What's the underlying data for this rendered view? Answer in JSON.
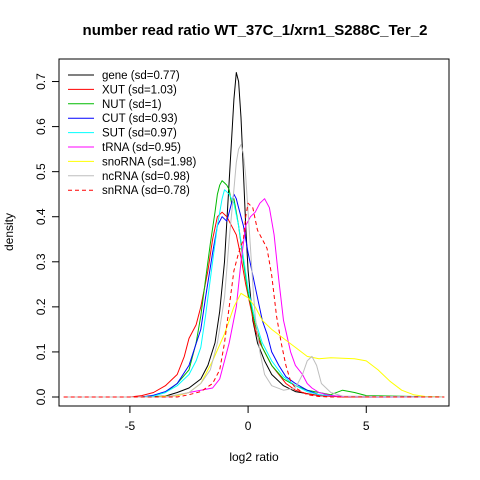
{
  "chart_data": {
    "type": "line",
    "title": "number read ratio WT_37C_1/xrn1_S288C_Ter_2",
    "xlabel": "log2 ratio",
    "ylabel": "density",
    "xlim": [
      -8.0,
      8.5
    ],
    "ylim": [
      -0.02,
      0.75
    ],
    "x_ticks": [
      -5,
      0,
      5
    ],
    "x_tick_labels": [
      "-5",
      "0",
      "5"
    ],
    "y_ticks": [
      0.0,
      0.1,
      0.2,
      0.3,
      0.4,
      0.5,
      0.6,
      0.7
    ],
    "y_tick_labels": [
      "0.0",
      "0.1",
      "0.2",
      "0.3",
      "0.4",
      "0.5",
      "0.6",
      "0.7"
    ],
    "grid": false,
    "legend_position": "top-left",
    "series": [
      {
        "name": "gene (sd=0.77)",
        "color": "#000000",
        "dash": false,
        "x": [
          -7.8,
          -4.5,
          -3.5,
          -3.0,
          -2.5,
          -2.0,
          -1.7,
          -1.4,
          -1.2,
          -1.0,
          -0.8,
          -0.6,
          -0.5,
          -0.4,
          -0.3,
          -0.2,
          -0.1,
          0.0,
          0.2,
          0.4,
          0.7,
          1.0,
          1.5,
          2.0,
          3.0,
          4.0,
          5.0,
          8.3
        ],
        "y": [
          0,
          0,
          0.002,
          0.01,
          0.02,
          0.04,
          0.07,
          0.12,
          0.19,
          0.3,
          0.48,
          0.66,
          0.72,
          0.7,
          0.62,
          0.5,
          0.38,
          0.28,
          0.17,
          0.12,
          0.08,
          0.05,
          0.025,
          0.012,
          0.003,
          0.001,
          0,
          0
        ]
      },
      {
        "name": "XUT (sd=1.03)",
        "color": "#ff0000",
        "dash": false,
        "x": [
          -7.8,
          -5.0,
          -4.5,
          -4.0,
          -3.5,
          -3.0,
          -2.7,
          -2.5,
          -2.2,
          -2.0,
          -1.7,
          -1.5,
          -1.3,
          -1.1,
          -0.9,
          -0.7,
          -0.5,
          -0.3,
          -0.1,
          0.1,
          0.3,
          0.5,
          0.8,
          1.0,
          1.3,
          1.6,
          2.0,
          2.5,
          3.0,
          4.0,
          8.3
        ],
        "y": [
          0,
          0,
          0.003,
          0.01,
          0.025,
          0.05,
          0.09,
          0.13,
          0.16,
          0.2,
          0.28,
          0.35,
          0.4,
          0.41,
          0.4,
          0.38,
          0.36,
          0.31,
          0.25,
          0.2,
          0.15,
          0.12,
          0.09,
          0.07,
          0.05,
          0.03,
          0.015,
          0.007,
          0.003,
          0,
          0
        ]
      },
      {
        "name": "NUT (sd=1)",
        "color": "#00bb00",
        "dash": false,
        "x": [
          -7.8,
          -4.5,
          -4.0,
          -3.5,
          -3.0,
          -2.5,
          -2.2,
          -2.0,
          -1.8,
          -1.6,
          -1.4,
          -1.3,
          -1.2,
          -1.1,
          -1.0,
          -0.9,
          -0.8,
          -0.7,
          -0.6,
          -0.5,
          -0.4,
          -0.2,
          0.0,
          0.3,
          0.6,
          1.0,
          1.5,
          2.0,
          2.5,
          3.0,
          3.5,
          4.0,
          4.5,
          5.0,
          8.3
        ],
        "y": [
          0,
          0,
          0.003,
          0.01,
          0.03,
          0.06,
          0.12,
          0.18,
          0.26,
          0.34,
          0.41,
          0.45,
          0.47,
          0.48,
          0.475,
          0.47,
          0.46,
          0.43,
          0.44,
          0.41,
          0.38,
          0.3,
          0.23,
          0.16,
          0.11,
          0.07,
          0.04,
          0.025,
          0.015,
          0.01,
          0.005,
          0.015,
          0.01,
          0.003,
          0
        ]
      },
      {
        "name": "CUT (sd=0.93)",
        "color": "#0000ff",
        "dash": false,
        "x": [
          -7.8,
          -4.5,
          -4.0,
          -3.5,
          -3.0,
          -2.5,
          -2.0,
          -1.8,
          -1.5,
          -1.3,
          -1.1,
          -0.9,
          -0.8,
          -0.7,
          -0.6,
          -0.5,
          -0.4,
          -0.2,
          0.0,
          0.2,
          0.4,
          0.6,
          0.8,
          1.0,
          1.3,
          1.6,
          2.0,
          2.5,
          3.0,
          4.0,
          8.3
        ],
        "y": [
          0,
          0,
          0.004,
          0.012,
          0.03,
          0.07,
          0.15,
          0.22,
          0.32,
          0.38,
          0.4,
          0.39,
          0.41,
          0.43,
          0.45,
          0.44,
          0.42,
          0.38,
          0.32,
          0.27,
          0.22,
          0.17,
          0.14,
          0.1,
          0.07,
          0.045,
          0.03,
          0.015,
          0.005,
          0.001,
          0
        ]
      },
      {
        "name": "SUT (sd=0.97)",
        "color": "#00ffff",
        "dash": false,
        "x": [
          -7.8,
          -4.5,
          -4.0,
          -3.5,
          -3.0,
          -2.5,
          -2.2,
          -2.0,
          -1.8,
          -1.5,
          -1.3,
          -1.1,
          -1.0,
          -0.8,
          -0.6,
          -0.4,
          -0.2,
          0.0,
          0.3,
          0.6,
          1.0,
          1.5,
          2.0,
          2.5,
          3.0,
          4.0,
          8.3
        ],
        "y": [
          0,
          0,
          0.002,
          0.01,
          0.025,
          0.05,
          0.08,
          0.11,
          0.18,
          0.3,
          0.38,
          0.44,
          0.46,
          0.45,
          0.43,
          0.38,
          0.31,
          0.24,
          0.17,
          0.12,
          0.08,
          0.045,
          0.025,
          0.012,
          0.005,
          0.001,
          0
        ]
      },
      {
        "name": "tRNA (sd=0.95)",
        "color": "#ff00ff",
        "dash": false,
        "x": [
          -7.8,
          -3.5,
          -3.0,
          -2.5,
          -2.0,
          -1.5,
          -1.2,
          -1.0,
          -0.8,
          -0.5,
          -0.3,
          -0.1,
          0.1,
          0.3,
          0.5,
          0.7,
          0.9,
          1.1,
          1.3,
          1.5,
          1.8,
          2.0,
          2.3,
          2.5,
          2.7,
          3.0,
          3.5,
          4.0,
          8.3
        ],
        "y": [
          0,
          0,
          0.003,
          0.01,
          0.015,
          0.02,
          0.04,
          0.08,
          0.12,
          0.2,
          0.3,
          0.38,
          0.4,
          0.41,
          0.43,
          0.44,
          0.42,
          0.36,
          0.26,
          0.17,
          0.1,
          0.07,
          0.05,
          0.03,
          0.02,
          0.01,
          0.003,
          0.001,
          0
        ]
      },
      {
        "name": "snoRNA (sd=1.98)",
        "color": "#ffff00",
        "dash": false,
        "x": [
          -7.8,
          -4.0,
          -3.0,
          -2.5,
          -2.0,
          -1.5,
          -1.0,
          -0.6,
          -0.3,
          0.0,
          0.3,
          0.6,
          1.0,
          1.5,
          2.0,
          2.5,
          3.0,
          3.5,
          4.0,
          4.5,
          5.0,
          5.5,
          6.0,
          6.5,
          7.0,
          7.5,
          8.3
        ],
        "y": [
          0,
          0,
          0.003,
          0.01,
          0.03,
          0.08,
          0.14,
          0.2,
          0.23,
          0.22,
          0.2,
          0.17,
          0.15,
          0.13,
          0.11,
          0.09,
          0.085,
          0.087,
          0.086,
          0.085,
          0.08,
          0.06,
          0.035,
          0.015,
          0.005,
          0.001,
          0
        ]
      },
      {
        "name": "ncRNA (sd=0.98)",
        "color": "#bebebe",
        "dash": false,
        "x": [
          -7.8,
          -3.5,
          -3.0,
          -2.5,
          -2.0,
          -1.6,
          -1.3,
          -1.0,
          -0.8,
          -0.6,
          -0.5,
          -0.4,
          -0.3,
          -0.2,
          -0.1,
          0.0,
          0.1,
          0.2,
          0.3,
          0.5,
          0.7,
          1.0,
          1.5,
          2.0,
          2.3,
          2.5,
          2.7,
          2.9,
          3.1,
          3.5,
          4.0,
          8.3
        ],
        "y": [
          0,
          0,
          0.005,
          0.01,
          0.03,
          0.06,
          0.12,
          0.22,
          0.35,
          0.46,
          0.52,
          0.55,
          0.56,
          0.54,
          0.49,
          0.41,
          0.33,
          0.25,
          0.18,
          0.1,
          0.05,
          0.025,
          0.015,
          0.02,
          0.05,
          0.08,
          0.09,
          0.07,
          0.03,
          0.01,
          0.002,
          0
        ]
      },
      {
        "name": "snRNA (sd=0.78)",
        "color": "#ff0000",
        "dash": true,
        "x": [
          -7.8,
          -3.0,
          -2.5,
          -2.0,
          -1.5,
          -1.2,
          -1.0,
          -0.8,
          -0.6,
          -0.4,
          -0.2,
          -0.1,
          0.0,
          0.2,
          0.4,
          0.6,
          0.8,
          1.0,
          1.2,
          1.4,
          1.6,
          1.8,
          2.0,
          2.5,
          3.0,
          3.5,
          8.3
        ],
        "y": [
          0,
          0,
          0.005,
          0.012,
          0.03,
          0.06,
          0.12,
          0.2,
          0.28,
          0.32,
          0.35,
          0.4,
          0.43,
          0.42,
          0.37,
          0.35,
          0.33,
          0.27,
          0.18,
          0.12,
          0.07,
          0.035,
          0.02,
          0.005,
          0.001,
          0,
          0
        ]
      }
    ]
  }
}
